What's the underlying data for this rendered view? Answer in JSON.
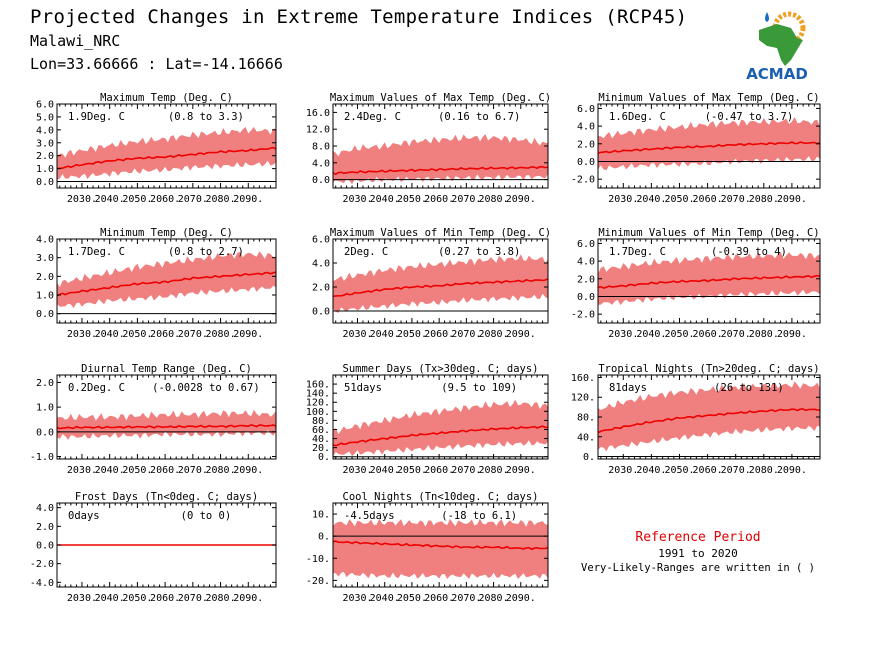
{
  "header": {
    "title": "Projected Changes in Extreme Temperature Indices (RCP45)",
    "site": "Malawi_NRC",
    "coords": "Lon=33.66666 : Lat=-14.16666"
  },
  "logo": {
    "text": "ACMAD",
    "icon": "africa-map-logo",
    "colors": {
      "land": "#3a9a3a",
      "water": "#1a6fc0",
      "sun": "#f0a020",
      "text": "#1a5fb0"
    }
  },
  "reference": {
    "title": "Reference Period",
    "years": "1991 to 2020",
    "note": "Very-Likely-Ranges are written in ( )"
  },
  "colors": {
    "band": "#f08080",
    "line": "#ee0000",
    "zero": "#000000"
  },
  "chart_data": [
    {
      "type": "area",
      "title": "Maximum Temp (Deg. C)",
      "value": "1.9Deg. C",
      "range": "(0.8 to 3.3)",
      "xlim": [
        2021,
        2100
      ],
      "ylim": [
        -0.5,
        6.0
      ],
      "yticks": [
        0.0,
        1.0,
        2.0,
        3.0,
        4.0,
        5.0,
        6.0
      ],
      "yticklabels": [
        "0.0",
        "1.0",
        "2.0",
        "3.0",
        "4.0",
        "5.0",
        "6.0"
      ],
      "x": [
        2021,
        2030,
        2040,
        2050,
        2060,
        2070,
        2080,
        2090,
        2100
      ],
      "median": [
        1.0,
        1.3,
        1.6,
        1.8,
        1.9,
        2.1,
        2.3,
        2.4,
        2.6
      ],
      "lower": [
        0.3,
        0.4,
        0.6,
        0.8,
        0.9,
        1.1,
        1.2,
        1.3,
        1.4
      ],
      "upper": [
        2.0,
        2.4,
        2.8,
        3.1,
        3.3,
        3.6,
        3.8,
        4.0,
        3.9
      ]
    },
    {
      "type": "area",
      "title": "Maximum Values of Max Temp (Deg. C)",
      "value": "2.4Deg. C",
      "range": "(0.16 to 6.7)",
      "xlim": [
        2021,
        2100
      ],
      "ylim": [
        -2.0,
        18.0
      ],
      "yticks": [
        0.0,
        4.0,
        8.0,
        12.0,
        16.0
      ],
      "yticklabels": [
        "0.0",
        "4.0",
        "8.0",
        "12.0",
        "16.0"
      ],
      "x": [
        2021,
        2030,
        2040,
        2050,
        2060,
        2070,
        2080,
        2090,
        2100
      ],
      "median": [
        1.5,
        1.8,
        2.0,
        2.2,
        2.4,
        2.6,
        2.7,
        2.8,
        3.0
      ],
      "lower": [
        -0.5,
        -0.3,
        0.0,
        0.1,
        0.2,
        0.4,
        0.5,
        0.6,
        0.7
      ],
      "upper": [
        6.0,
        7.5,
        8.0,
        9.0,
        9.5,
        10.0,
        10.0,
        9.5,
        8.5
      ]
    },
    {
      "type": "area",
      "title": "Minimum Values of Max Temp (Deg. C)",
      "value": "1.6Deg. C",
      "range": "(-0.47 to 3.7)",
      "xlim": [
        2021,
        2100
      ],
      "ylim": [
        -3.0,
        6.5
      ],
      "yticks": [
        -2.0,
        0.0,
        2.0,
        4.0,
        6.0
      ],
      "yticklabels": [
        "-2.0",
        "0.0",
        "2.0",
        "4.0",
        "6.0"
      ],
      "x": [
        2021,
        2030,
        2040,
        2050,
        2060,
        2070,
        2080,
        2090,
        2100
      ],
      "median": [
        1.0,
        1.2,
        1.4,
        1.6,
        1.7,
        1.9,
        2.0,
        2.1,
        2.1
      ],
      "lower": [
        -0.8,
        -0.6,
        -0.4,
        -0.3,
        -0.2,
        0.0,
        0.1,
        0.2,
        0.3
      ],
      "upper": [
        2.8,
        3.2,
        3.6,
        3.9,
        4.2,
        4.4,
        4.5,
        4.6,
        4.4
      ]
    },
    {
      "type": "area",
      "title": "Minimum Temp (Deg. C)",
      "value": "1.7Deg. C",
      "range": "(0.8 to 2.7)",
      "xlim": [
        2021,
        2100
      ],
      "ylim": [
        -0.5,
        4.0
      ],
      "yticks": [
        0.0,
        1.0,
        2.0,
        3.0,
        4.0
      ],
      "yticklabels": [
        "0.0",
        "1.0",
        "2.0",
        "3.0",
        "4.0"
      ],
      "x": [
        2021,
        2030,
        2040,
        2050,
        2060,
        2070,
        2080,
        2090,
        2100
      ],
      "median": [
        1.0,
        1.2,
        1.4,
        1.6,
        1.7,
        1.9,
        2.0,
        2.1,
        2.2
      ],
      "lower": [
        0.4,
        0.5,
        0.7,
        0.8,
        0.9,
        1.1,
        1.2,
        1.3,
        1.4
      ],
      "upper": [
        1.6,
        1.9,
        2.2,
        2.5,
        2.7,
        2.9,
        3.1,
        3.2,
        3.1
      ]
    },
    {
      "type": "area",
      "title": "Maximum Values of Min Temp (Deg. C)",
      "value": "2Deg. C",
      "range": "(0.27 to 3.8)",
      "xlim": [
        2021,
        2100
      ],
      "ylim": [
        -1.0,
        6.0
      ],
      "yticks": [
        0.0,
        2.0,
        4.0,
        6.0
      ],
      "yticklabels": [
        "0.0",
        "2.0",
        "4.0",
        "6.0"
      ],
      "x": [
        2021,
        2030,
        2040,
        2050,
        2060,
        2070,
        2080,
        2090,
        2100
      ],
      "median": [
        1.2,
        1.5,
        1.8,
        2.0,
        2.1,
        2.3,
        2.4,
        2.5,
        2.6
      ],
      "lower": [
        0.0,
        0.2,
        0.4,
        0.6,
        0.7,
        0.9,
        1.0,
        1.1,
        1.2
      ],
      "upper": [
        2.6,
        3.0,
        3.4,
        3.7,
        3.9,
        4.1,
        4.3,
        4.4,
        4.3
      ]
    },
    {
      "type": "area",
      "title": "Minimum Values of Min Temp (Deg. C)",
      "value": "1.7Deg. C",
      "range": "(-0.39 to 4)",
      "xlim": [
        2021,
        2100
      ],
      "ylim": [
        -3.0,
        6.5
      ],
      "yticks": [
        -2.0,
        0.0,
        2.0,
        4.0,
        6.0
      ],
      "yticklabels": [
        "-2.0",
        "0.0",
        "2.0",
        "4.0",
        "6.0"
      ],
      "x": [
        2021,
        2030,
        2040,
        2050,
        2060,
        2070,
        2080,
        2090,
        2100
      ],
      "median": [
        1.0,
        1.2,
        1.5,
        1.7,
        1.8,
        2.0,
        2.1,
        2.2,
        2.3
      ],
      "lower": [
        -0.8,
        -0.6,
        -0.3,
        -0.1,
        0.0,
        0.2,
        0.3,
        0.4,
        0.5
      ],
      "upper": [
        3.0,
        3.4,
        3.8,
        4.1,
        4.3,
        4.5,
        4.6,
        4.7,
        4.6
      ]
    },
    {
      "type": "area",
      "title": "Diurnal Temp Range (Deg. C)",
      "value": "0.2Deg. C",
      "range": "(-0.0028 to 0.67)",
      "xlim": [
        2021,
        2100
      ],
      "ylim": [
        -1.1,
        2.3
      ],
      "yticks": [
        -1.0,
        0.0,
        1.0,
        2.0
      ],
      "yticklabels": [
        "-1.0",
        "0.0",
        "1.0",
        "2.0"
      ],
      "x": [
        2021,
        2030,
        2040,
        2050,
        2060,
        2070,
        2080,
        2090,
        2100
      ],
      "median": [
        0.15,
        0.18,
        0.18,
        0.2,
        0.2,
        0.22,
        0.22,
        0.25,
        0.25
      ],
      "lower": [
        -0.2,
        -0.2,
        -0.15,
        -0.15,
        -0.1,
        -0.1,
        -0.1,
        -0.05,
        -0.05
      ],
      "upper": [
        0.55,
        0.6,
        0.6,
        0.65,
        0.7,
        0.7,
        0.75,
        0.75,
        0.7
      ]
    },
    {
      "type": "area",
      "title": "Summer Days (Tx>30deg. C; days)",
      "value": "51days",
      "range": "(9.5 to 109)",
      "xlim": [
        2021,
        2100
      ],
      "ylim": [
        -5,
        180
      ],
      "yticks": [
        0,
        20,
        40,
        60,
        80,
        100,
        120,
        140,
        160
      ],
      "yticklabels": [
        "0.",
        "20.",
        "40.",
        "60.",
        "80.",
        "100.",
        "120.",
        "140.",
        "160."
      ],
      "x": [
        2021,
        2030,
        2040,
        2050,
        2060,
        2070,
        2080,
        2090,
        2100
      ],
      "median": [
        25,
        33,
        40,
        47,
        52,
        57,
        61,
        64,
        66
      ],
      "lower": [
        5,
        8,
        12,
        16,
        20,
        24,
        27,
        29,
        30
      ],
      "upper": [
        55,
        68,
        80,
        92,
        100,
        108,
        115,
        118,
        112
      ]
    },
    {
      "type": "area",
      "title": "Tropical Nights (Tn>20deg. C; days)",
      "value": "81days",
      "range": "(26 to 131)",
      "xlim": [
        2021,
        2100
      ],
      "ylim": [
        -5,
        165
      ],
      "yticks": [
        0,
        40,
        80,
        120,
        160
      ],
      "yticklabels": [
        "0.",
        "40.",
        "80.",
        "120.",
        "160."
      ],
      "x": [
        2021,
        2030,
        2040,
        2050,
        2060,
        2070,
        2080,
        2090,
        2100
      ],
      "median": [
        50,
        60,
        70,
        78,
        83,
        88,
        92,
        95,
        95
      ],
      "lower": [
        15,
        22,
        30,
        38,
        44,
        50,
        54,
        57,
        58
      ],
      "upper": [
        95,
        110,
        122,
        130,
        135,
        140,
        143,
        145,
        143
      ]
    },
    {
      "type": "area",
      "title": "Frost Days (Tn<0deg. C; days)",
      "value": "0days",
      "range": "(0 to 0)",
      "xlim": [
        2021,
        2100
      ],
      "ylim": [
        -4.5,
        4.5
      ],
      "yticks": [
        -4.0,
        -2.0,
        0.0,
        2.0,
        4.0
      ],
      "yticklabels": [
        "-4.0",
        "-2.0",
        "0.0",
        "2.0",
        "4.0"
      ],
      "x": [
        2021,
        2030,
        2040,
        2050,
        2060,
        2070,
        2080,
        2090,
        2100
      ],
      "median": [
        0,
        0,
        0,
        0,
        0,
        0,
        0,
        0,
        0
      ],
      "lower": [
        0,
        0,
        0,
        0,
        0,
        0,
        0,
        0,
        0
      ],
      "upper": [
        0,
        0,
        0,
        0,
        0,
        0,
        0,
        0,
        0
      ]
    },
    {
      "type": "area",
      "title": "Cool Nights (Tn<10deg. C; days)",
      "value": "-4.5days",
      "range": "(-18 to 6.1)",
      "xlim": [
        2021,
        2100
      ],
      "ylim": [
        -23,
        15
      ],
      "yticks": [
        -20,
        -10,
        0,
        10
      ],
      "yticklabels": [
        "-20.",
        "-10.",
        "0.",
        "10."
      ],
      "x": [
        2021,
        2030,
        2040,
        2050,
        2060,
        2070,
        2080,
        2090,
        2100
      ],
      "median": [
        -2.5,
        -3,
        -3.5,
        -4,
        -4.5,
        -5,
        -5,
        -5.5,
        -5.5
      ],
      "lower": [
        -17,
        -17.5,
        -18,
        -18,
        -18,
        -18,
        -18,
        -18,
        -18
      ],
      "upper": [
        6,
        6.1,
        6.1,
        6.1,
        6.1,
        6.1,
        6.1,
        6.1,
        6.1
      ]
    }
  ],
  "xticklabels": [
    "2030.",
    "2040.",
    "2050.",
    "2060.",
    "2070.",
    "2080.",
    "2090."
  ]
}
